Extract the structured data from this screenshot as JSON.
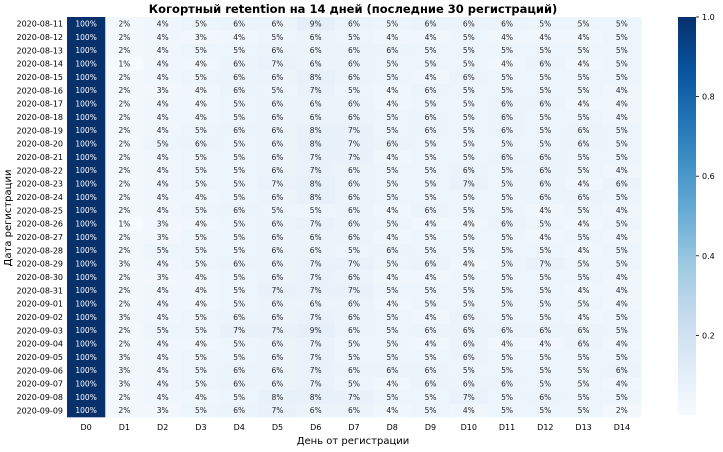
{
  "chart_data": {
    "type": "heatmap",
    "title": "Когортный retention на 14 дней (последние 30 регистраций)",
    "xlabel": "День от регистрации",
    "ylabel": "Дата регистрации",
    "x_categories": [
      "D0",
      "D1",
      "D2",
      "D3",
      "D4",
      "D5",
      "D6",
      "D7",
      "D8",
      "D9",
      "D10",
      "D11",
      "D12",
      "D13",
      "D14"
    ],
    "y_categories": [
      "2020-08-11",
      "2020-08-12",
      "2020-08-13",
      "2020-08-14",
      "2020-08-15",
      "2020-08-16",
      "2020-08-17",
      "2020-08-18",
      "2020-08-19",
      "2020-08-20",
      "2020-08-21",
      "2020-08-22",
      "2020-08-23",
      "2020-08-24",
      "2020-08-25",
      "2020-08-26",
      "2020-08-27",
      "2020-08-28",
      "2020-08-29",
      "2020-08-30",
      "2020-08-31",
      "2020-09-01",
      "2020-09-02",
      "2020-09-03",
      "2020-09-04",
      "2020-09-05",
      "2020-09-06",
      "2020-09-07",
      "2020-09-08",
      "2020-09-09"
    ],
    "values": [
      [
        100,
        2,
        4,
        5,
        6,
        6,
        9,
        6,
        5,
        6,
        6,
        6,
        5,
        5,
        5
      ],
      [
        100,
        2,
        4,
        3,
        4,
        5,
        6,
        5,
        4,
        4,
        5,
        4,
        4,
        4,
        5
      ],
      [
        100,
        2,
        4,
        5,
        5,
        6,
        6,
        6,
        6,
        5,
        5,
        5,
        5,
        5,
        5
      ],
      [
        100,
        1,
        4,
        4,
        6,
        7,
        6,
        6,
        5,
        5,
        5,
        4,
        6,
        4,
        5
      ],
      [
        100,
        2,
        4,
        5,
        6,
        6,
        8,
        6,
        5,
        4,
        6,
        5,
        5,
        5,
        5
      ],
      [
        100,
        2,
        3,
        4,
        6,
        5,
        7,
        5,
        4,
        6,
        5,
        5,
        5,
        5,
        4
      ],
      [
        100,
        2,
        4,
        4,
        5,
        6,
        6,
        6,
        4,
        5,
        5,
        6,
        6,
        4,
        4
      ],
      [
        100,
        2,
        4,
        4,
        5,
        6,
        6,
        6,
        5,
        6,
        5,
        6,
        5,
        5,
        4
      ],
      [
        100,
        2,
        4,
        5,
        6,
        6,
        8,
        7,
        5,
        6,
        5,
        6,
        5,
        6,
        5
      ],
      [
        100,
        2,
        5,
        6,
        5,
        6,
        8,
        7,
        6,
        5,
        5,
        5,
        5,
        6,
        5
      ],
      [
        100,
        2,
        4,
        5,
        5,
        6,
        7,
        7,
        4,
        5,
        5,
        6,
        6,
        5,
        5
      ],
      [
        100,
        2,
        4,
        5,
        5,
        6,
        7,
        6,
        5,
        5,
        6,
        5,
        6,
        5,
        4
      ],
      [
        100,
        2,
        4,
        5,
        5,
        7,
        8,
        6,
        5,
        5,
        7,
        5,
        6,
        4,
        6
      ],
      [
        100,
        2,
        4,
        4,
        5,
        6,
        8,
        6,
        5,
        5,
        5,
        5,
        6,
        6,
        5
      ],
      [
        100,
        2,
        4,
        5,
        6,
        5,
        5,
        6,
        4,
        6,
        5,
        5,
        4,
        5,
        4
      ],
      [
        100,
        1,
        3,
        4,
        5,
        6,
        7,
        6,
        5,
        4,
        4,
        6,
        5,
        4,
        5
      ],
      [
        100,
        2,
        3,
        5,
        5,
        6,
        6,
        6,
        4,
        5,
        5,
        5,
        4,
        5,
        4
      ],
      [
        100,
        2,
        5,
        5,
        5,
        6,
        6,
        5,
        6,
        5,
        5,
        5,
        5,
        4,
        5
      ],
      [
        100,
        3,
        4,
        5,
        6,
        6,
        7,
        7,
        5,
        6,
        4,
        5,
        7,
        5,
        5
      ],
      [
        100,
        2,
        3,
        4,
        5,
        6,
        7,
        6,
        4,
        4,
        5,
        5,
        5,
        5,
        4
      ],
      [
        100,
        2,
        4,
        4,
        5,
        7,
        7,
        7,
        5,
        5,
        5,
        5,
        5,
        4,
        4
      ],
      [
        100,
        2,
        4,
        4,
        5,
        6,
        6,
        6,
        4,
        5,
        5,
        5,
        5,
        5,
        4
      ],
      [
        100,
        3,
        4,
        5,
        6,
        6,
        7,
        6,
        5,
        4,
        6,
        5,
        5,
        4,
        5
      ],
      [
        100,
        2,
        5,
        5,
        7,
        7,
        9,
        6,
        5,
        6,
        6,
        6,
        6,
        6,
        5
      ],
      [
        100,
        2,
        4,
        4,
        5,
        6,
        7,
        5,
        5,
        4,
        6,
        4,
        4,
        6,
        4
      ],
      [
        100,
        3,
        4,
        5,
        5,
        6,
        7,
        5,
        5,
        5,
        6,
        5,
        5,
        5,
        5
      ],
      [
        100,
        3,
        4,
        5,
        6,
        6,
        7,
        6,
        6,
        6,
        5,
        5,
        5,
        5,
        6
      ],
      [
        100,
        3,
        4,
        5,
        6,
        6,
        7,
        5,
        4,
        6,
        6,
        6,
        5,
        5,
        4
      ],
      [
        100,
        2,
        4,
        4,
        5,
        8,
        8,
        7,
        5,
        5,
        7,
        5,
        6,
        5,
        5
      ],
      [
        100,
        2,
        3,
        5,
        6,
        7,
        6,
        6,
        4,
        5,
        4,
        5,
        5,
        5,
        2
      ]
    ],
    "value_format": "percent",
    "colormap": "Blues",
    "colorbar": {
      "min": 0,
      "max": 1,
      "ticks": [
        0.2,
        0.4,
        0.6,
        0.8,
        1.0
      ]
    },
    "grid": false
  }
}
